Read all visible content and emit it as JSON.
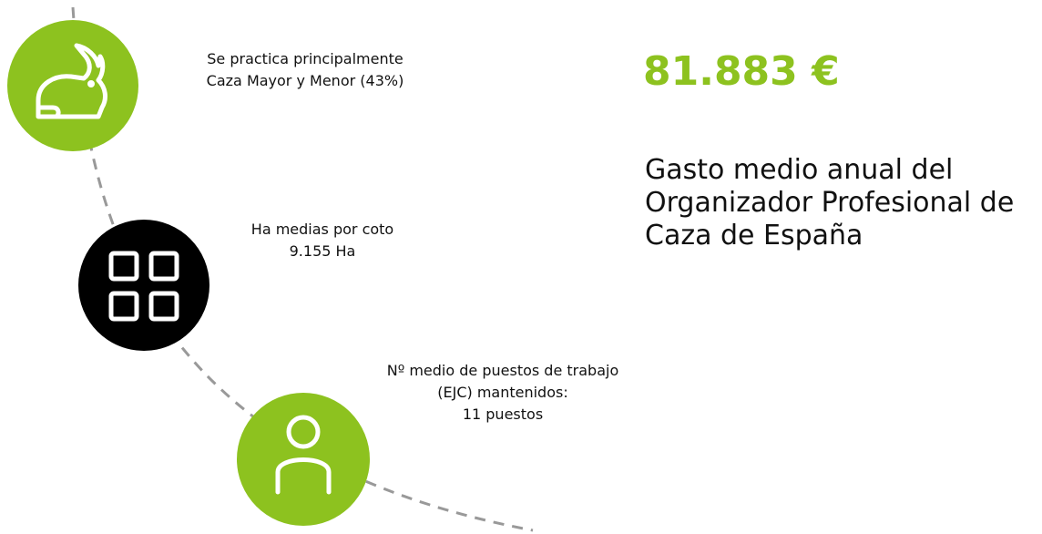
{
  "items": [
    {
      "lines": [
        "Se practica principalmente",
        "Caza Mayor y Menor (43%)"
      ]
    },
    {
      "lines": [
        "Ha medias por coto",
        "9.155 Ha"
      ]
    },
    {
      "lines": [
        "Nº medio de puestos de trabajo",
        "(EJC) mantenidos:",
        "11 puestos"
      ]
    }
  ],
  "highlight": {
    "value": "81.883 €",
    "description": [
      "Gasto medio anual del",
      "Organizador Profesional de",
      "Caza de España"
    ]
  }
}
